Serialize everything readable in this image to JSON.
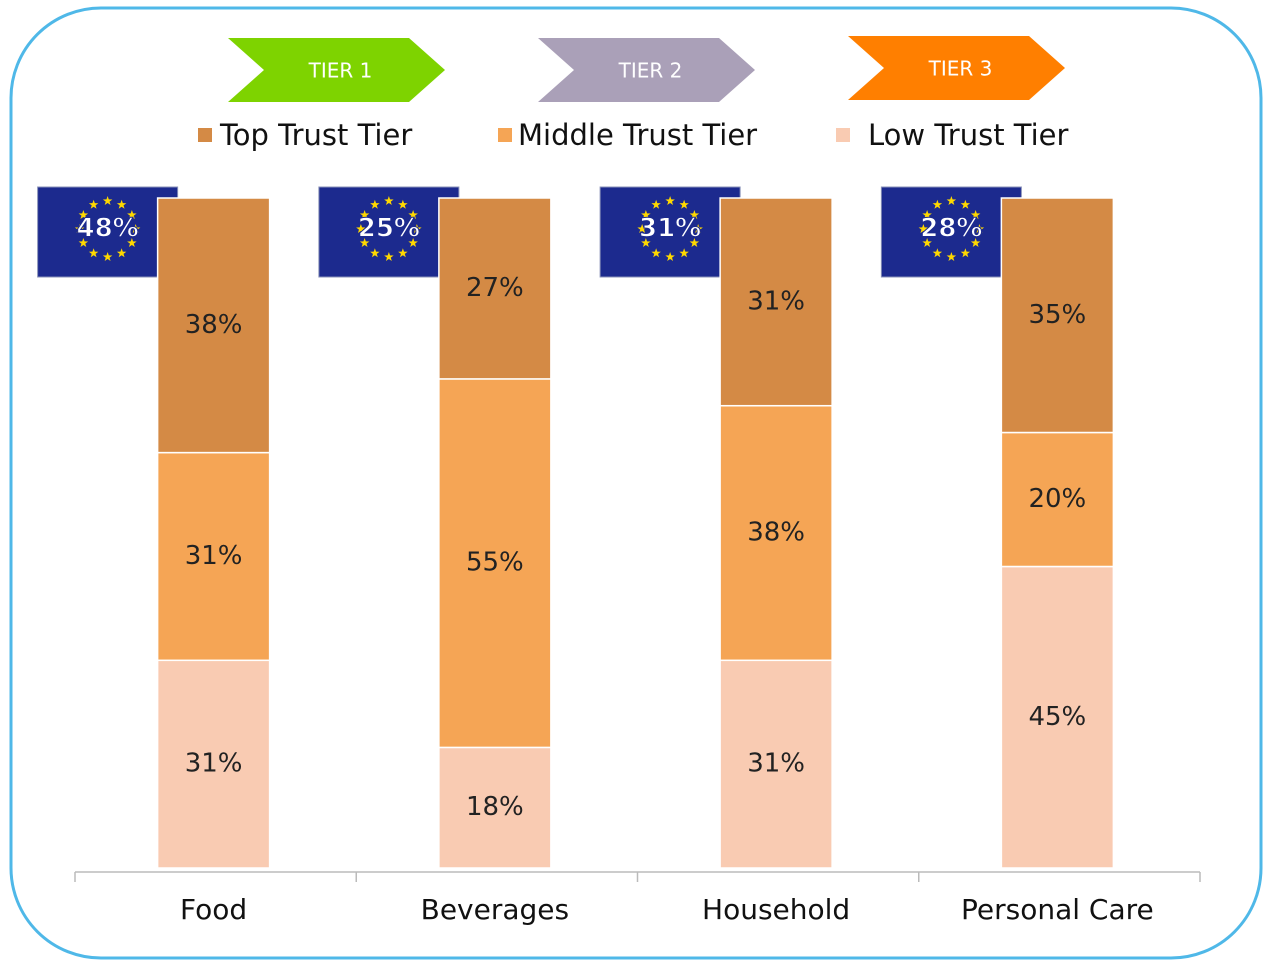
{
  "chart_data": {
    "type": "stacked_bar",
    "tiers": [
      {
        "label": "TIER 1",
        "color": "#7ed300"
      },
      {
        "label": "TIER 2",
        "color": "#aaa0b8"
      },
      {
        "label": "TIER 3",
        "color": "#ff7f00"
      }
    ],
    "categories": [
      "Food",
      "Beverages",
      "Household",
      "Personal Care"
    ],
    "series": [
      {
        "name": "Top Trust Tier",
        "color": "#d48a45",
        "values": [
          38,
          27,
          31,
          35
        ],
        "value_labels": [
          "38%",
          "27%",
          "31%",
          "35%"
        ]
      },
      {
        "name": "Middle Trust Tier",
        "color": "#f5a555",
        "values": [
          31,
          55,
          38,
          20
        ],
        "value_labels": [
          "31%",
          "55%",
          "38%",
          "20%"
        ]
      },
      {
        "name": "Low Trust Tier",
        "color": "#f9cbb2",
        "values": [
          31,
          18,
          31,
          45
        ],
        "value_labels": [
          "31%",
          "18%",
          "31%",
          "45%"
        ]
      }
    ],
    "eu_values": [
      48,
      25,
      31,
      28
    ],
    "eu_value_labels": [
      "48%",
      "25%",
      "31%",
      "28%"
    ],
    "ylim": [
      0,
      100
    ]
  }
}
